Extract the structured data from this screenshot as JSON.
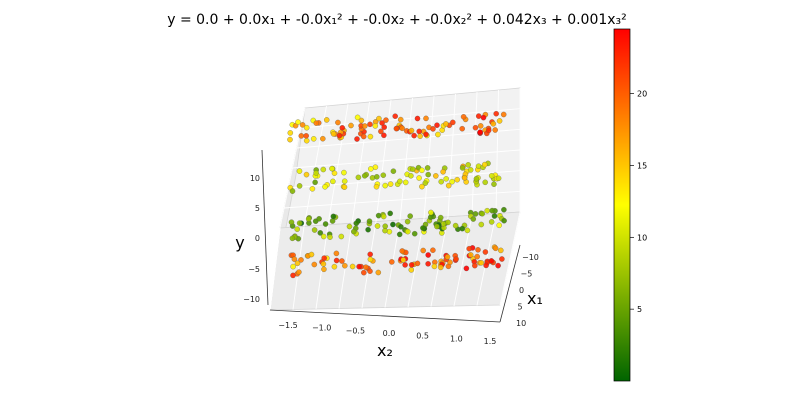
{
  "chart_data": {
    "type": "scatter",
    "projection": "3d",
    "title": "y = 0.0 + 0.0x₁ + -0.0x₁² + -0.0x₂ + -0.0x₂² + 0.042x₃ + 0.001x₃²",
    "xlabel": "x₂",
    "ylabel": "x₁",
    "zlabel": "y",
    "x_ticks": [
      "−1.5",
      "−1.0",
      "−0.5",
      "0.0",
      "0.5",
      "1.0",
      "1.5"
    ],
    "y_ticks": [
      "−10",
      "−5",
      "0",
      "5",
      "10"
    ],
    "z_ticks": [
      "−10",
      "−5",
      "0",
      "5",
      "10"
    ],
    "xlim": [
      -1.6,
      1.6
    ],
    "ylim": [
      -12,
      12
    ],
    "zlim": [
      -12,
      12
    ],
    "colorbar": {
      "ticks": [
        "5",
        "10",
        "15",
        "20"
      ],
      "tick_values": [
        5,
        10,
        15,
        20
      ],
      "range": [
        0,
        24.5
      ],
      "colors": [
        "#006400",
        "#ffff00",
        "#ff0000"
      ]
    },
    "series": [
      {
        "approx_x2_range": [
          -1.4,
          1.4
        ],
        "x1": -9,
        "y": 9
      },
      {
        "approx_x2_range": [
          -1.4,
          1.4
        ],
        "x1": -3,
        "y": 3
      },
      {
        "approx_x2_range": [
          -1.4,
          1.4
        ],
        "x1": 3,
        "y": -3
      },
      {
        "approx_x2_range": [
          -1.4,
          1.4
        ],
        "x1": 9,
        "y": -9
      }
    ],
    "grid": true,
    "colorbar_position": "right"
  }
}
